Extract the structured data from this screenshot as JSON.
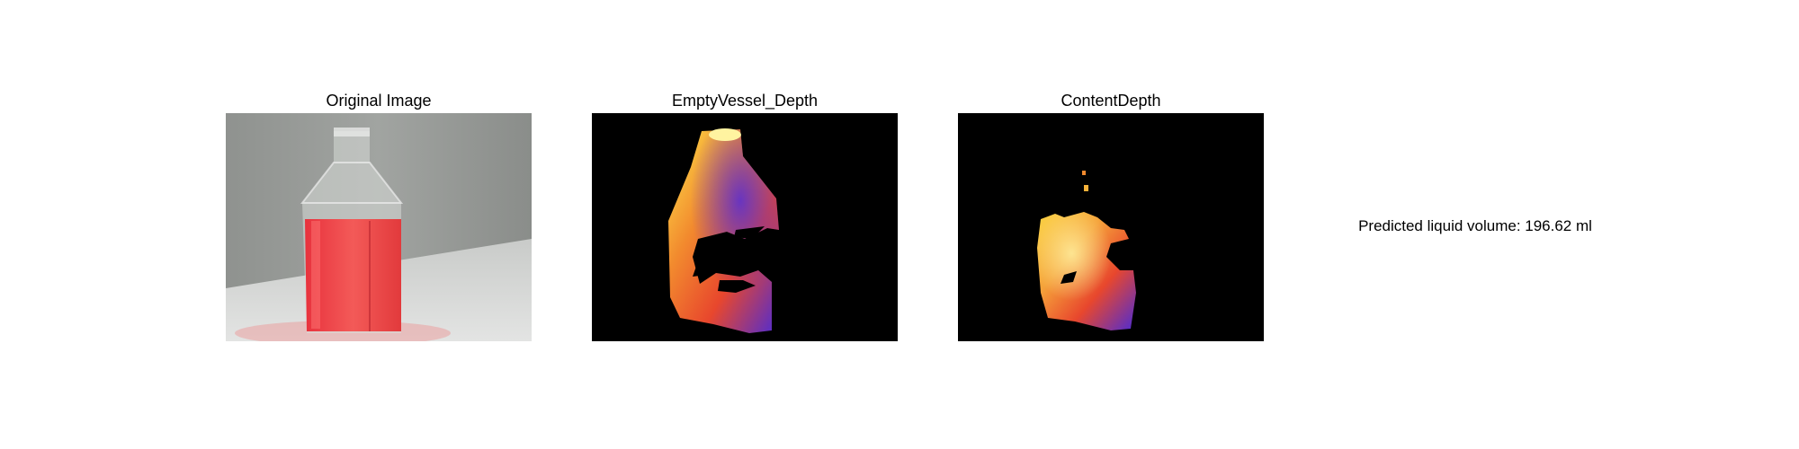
{
  "panels": [
    {
      "title": "Original Image",
      "image": "photo of a square glass bottle filled with red liquid against a grey wall"
    },
    {
      "title": "EmptyVessel_Depth",
      "image": "depth map of the empty vessel in inferno-style colormap on black background"
    },
    {
      "title": "ContentDepth",
      "image": "depth map of the liquid content in inferno-style colormap on black background"
    }
  ],
  "result": {
    "text": "Predicted liquid volume: 196.62 ml"
  },
  "colors": {
    "depth_low": "#4b2bd6",
    "depth_mid": "#e8472d",
    "depth_high": "#fde64a",
    "liquid": "#f0404a",
    "background_photo": "#9a9d9a"
  }
}
